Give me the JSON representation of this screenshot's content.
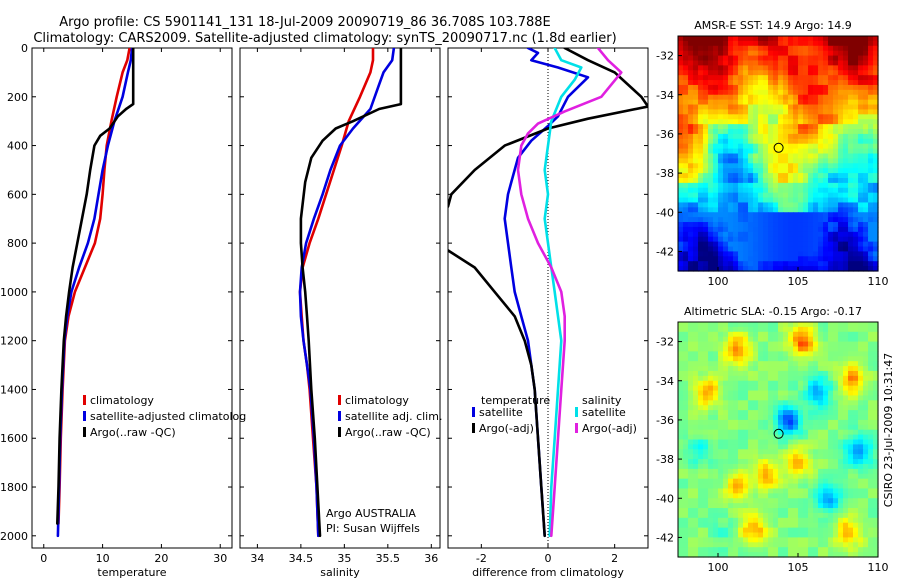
{
  "header": {
    "line1": "Argo profile: CS 5901141_131 18-Jul-2009 20090719_86 36.708S 103.788E",
    "line2": "Climatology: CARS2009. Satellite-adjusted climatology: synTS_20090717.nc (1.8d earlier)"
  },
  "side_text": "CSIRO 23-Jul-2009 10:31:47",
  "colors": {
    "climatology": "#e00000",
    "satellite": "#0000e0",
    "argo": "#000000",
    "sal_satellite": "#00e0e8",
    "sal_argo": "#e020e0"
  },
  "chart_data": [
    {
      "type": "line",
      "id": "temperature",
      "xlabel": "temperature",
      "xlim": [
        -2,
        32
      ],
      "ylim": [
        2050,
        0
      ],
      "xticks": [
        0,
        10,
        20,
        30
      ],
      "yticks": [
        0,
        200,
        400,
        600,
        800,
        1000,
        1200,
        1400,
        1600,
        1800,
        2000
      ],
      "legend": {
        "placement": "lower-left",
        "entries": [
          "climatology",
          "satellite-adjusted climatolog",
          "Argo(..raw -QC)"
        ]
      },
      "series": [
        {
          "name": "climatology",
          "color_key": "climatology",
          "points": [
            [
              14.6,
              0
            ],
            [
              14.2,
              50
            ],
            [
              13.4,
              100
            ],
            [
              12.4,
              200
            ],
            [
              11.5,
              300
            ],
            [
              10.7,
              400
            ],
            [
              10.3,
              500
            ],
            [
              10.0,
              600
            ],
            [
              9.6,
              700
            ],
            [
              8.7,
              800
            ],
            [
              7.0,
              900
            ],
            [
              5.3,
              1000
            ],
            [
              4.2,
              1100
            ],
            [
              3.6,
              1200
            ],
            [
              3.2,
              1400
            ],
            [
              2.9,
              1600
            ],
            [
              2.7,
              1800
            ],
            [
              2.5,
              1950
            ]
          ]
        },
        {
          "name": "satellite-adjusted climatolog",
          "color_key": "satellite",
          "points": [
            [
              15.0,
              0
            ],
            [
              14.8,
              50
            ],
            [
              14.3,
              100
            ],
            [
              13.4,
              200
            ],
            [
              12.0,
              300
            ],
            [
              10.9,
              400
            ],
            [
              10.0,
              500
            ],
            [
              9.3,
              600
            ],
            [
              8.6,
              700
            ],
            [
              7.5,
              800
            ],
            [
              6.0,
              900
            ],
            [
              4.7,
              1000
            ],
            [
              4.0,
              1100
            ],
            [
              3.5,
              1200
            ],
            [
              3.1,
              1400
            ],
            [
              2.8,
              1600
            ],
            [
              2.6,
              1800
            ],
            [
              2.4,
              2000
            ]
          ]
        },
        {
          "name": "Argo(..raw -QC)",
          "color_key": "argo",
          "points": [
            [
              15.2,
              0
            ],
            [
              15.2,
              100
            ],
            [
              15.2,
              230
            ],
            [
              14.0,
              250
            ],
            [
              12.6,
              280
            ],
            [
              11.2,
              330
            ],
            [
              9.6,
              360
            ],
            [
              8.6,
              400
            ],
            [
              7.9,
              500
            ],
            [
              7.3,
              600
            ],
            [
              6.5,
              700
            ],
            [
              5.7,
              800
            ],
            [
              4.9,
              900
            ],
            [
              4.3,
              1000
            ],
            [
              3.8,
              1100
            ],
            [
              3.4,
              1200
            ],
            [
              3.0,
              1400
            ],
            [
              2.7,
              1600
            ],
            [
              2.5,
              1800
            ],
            [
              2.3,
              1950
            ]
          ]
        }
      ]
    },
    {
      "type": "line",
      "id": "salinity",
      "xlabel": "salinity",
      "xlim": [
        33.8,
        36.1
      ],
      "ylim": [
        2050,
        0
      ],
      "xticks": [
        34,
        34.5,
        35,
        35.5,
        36
      ],
      "xticklabels": [
        "34",
        "34.5",
        "35",
        "35.5",
        "36"
      ],
      "legend": {
        "placement": "lower-right",
        "entries": [
          "climatology",
          "satellite adj. clim.",
          "Argo(..raw -QC)"
        ]
      },
      "annotation": [
        "Argo AUSTRALIA",
        "PI: Susan Wijffels"
      ],
      "series": [
        {
          "name": "climatology",
          "color_key": "climatology",
          "points": [
            [
              35.33,
              0
            ],
            [
              35.33,
              50
            ],
            [
              35.3,
              100
            ],
            [
              35.18,
              200
            ],
            [
              35.05,
              300
            ],
            [
              34.97,
              400
            ],
            [
              34.88,
              500
            ],
            [
              34.79,
              600
            ],
            [
              34.7,
              700
            ],
            [
              34.6,
              800
            ],
            [
              34.52,
              900
            ],
            [
              34.49,
              1000
            ],
            [
              34.51,
              1100
            ],
            [
              34.53,
              1200
            ],
            [
              34.57,
              1300
            ],
            [
              34.6,
              1400
            ],
            [
              34.64,
              1600
            ],
            [
              34.68,
              1800
            ],
            [
              34.7,
              2000
            ]
          ]
        },
        {
          "name": "satellite adj. clim.",
          "color_key": "satellite",
          "points": [
            [
              35.57,
              0
            ],
            [
              35.55,
              50
            ],
            [
              35.45,
              100
            ],
            [
              35.4,
              150
            ],
            [
              35.3,
              250
            ],
            [
              35.1,
              330
            ],
            [
              34.95,
              400
            ],
            [
              34.84,
              500
            ],
            [
              34.75,
              600
            ],
            [
              34.65,
              700
            ],
            [
              34.56,
              800
            ],
            [
              34.51,
              900
            ],
            [
              34.49,
              1000
            ],
            [
              34.5,
              1100
            ],
            [
              34.53,
              1200
            ],
            [
              34.57,
              1300
            ],
            [
              34.61,
              1400
            ],
            [
              34.65,
              1600
            ],
            [
              34.68,
              1800
            ],
            [
              34.7,
              2000
            ]
          ]
        },
        {
          "name": "Argo(..raw -QC)",
          "color_key": "argo",
          "points": [
            [
              35.65,
              0
            ],
            [
              35.65,
              100
            ],
            [
              35.65,
              230
            ],
            [
              35.4,
              250
            ],
            [
              35.1,
              300
            ],
            [
              34.9,
              330
            ],
            [
              34.75,
              380
            ],
            [
              34.62,
              450
            ],
            [
              34.55,
              550
            ],
            [
              34.5,
              700
            ],
            [
              34.5,
              800
            ],
            [
              34.52,
              900
            ],
            [
              34.55,
              1000
            ],
            [
              34.57,
              1100
            ],
            [
              34.59,
              1200
            ],
            [
              34.62,
              1400
            ],
            [
              34.66,
              1600
            ],
            [
              34.69,
              1800
            ],
            [
              34.72,
              2000
            ]
          ]
        }
      ]
    },
    {
      "type": "line",
      "id": "difference",
      "xlabel": "difference from climatology",
      "xlim": [
        -3,
        3
      ],
      "ylim": [
        2050,
        0
      ],
      "xticks": [
        -2,
        0,
        2
      ],
      "zero_line": "dotted",
      "legend": {
        "placement": "lower-center",
        "headers": [
          "temperature",
          "salinity"
        ],
        "entries": [
          "satellite",
          "Argo(-adj)",
          "satellite",
          "Argo(-adj)"
        ]
      },
      "series": [
        {
          "name": "temperature satellite",
          "color_key": "satellite",
          "points": [
            [
              -0.6,
              0
            ],
            [
              -0.3,
              20
            ],
            [
              -0.5,
              50
            ],
            [
              0.3,
              80
            ],
            [
              1.2,
              120
            ],
            [
              0.6,
              200
            ],
            [
              0.3,
              280
            ],
            [
              0.0,
              320
            ],
            [
              -0.5,
              380
            ],
            [
              -0.9,
              450
            ],
            [
              -1.1,
              550
            ],
            [
              -1.2,
              600
            ],
            [
              -1.3,
              700
            ],
            [
              -1.2,
              800
            ],
            [
              -1.1,
              900
            ],
            [
              -1.0,
              1000
            ],
            [
              -0.8,
              1100
            ],
            [
              -0.6,
              1200
            ],
            [
              -0.5,
              1300
            ],
            [
              -0.4,
              1400
            ],
            [
              -0.3,
              1600
            ],
            [
              -0.2,
              1800
            ],
            [
              -0.1,
              2000
            ]
          ]
        },
        {
          "name": "temperature Argo(-adj)",
          "color_key": "argo",
          "points": [
            [
              0.5,
              0
            ],
            [
              1.2,
              50
            ],
            [
              2.0,
              100
            ],
            [
              2.8,
              200
            ],
            [
              3.0,
              240
            ],
            [
              1.2,
              290
            ],
            [
              0.0,
              330
            ],
            [
              -1.3,
              400
            ],
            [
              -2.2,
              500
            ],
            [
              -2.9,
              600
            ],
            [
              -3.0,
              650
            ]
          ]
        },
        {
          "name": "temperature Argo(-adj) deep",
          "color_key": "argo",
          "points": [
            [
              -3.0,
              830
            ],
            [
              -2.2,
              900
            ],
            [
              -1.6,
              1000
            ],
            [
              -1.0,
              1100
            ],
            [
              -0.7,
              1200
            ],
            [
              -0.5,
              1300
            ],
            [
              -0.4,
              1400
            ],
            [
              -0.3,
              1600
            ],
            [
              -0.2,
              1800
            ],
            [
              -0.1,
              2000
            ]
          ]
        },
        {
          "name": "salinity satellite",
          "color_key": "sal_satellite",
          "points": [
            [
              0.2,
              0
            ],
            [
              0.4,
              50
            ],
            [
              1.0,
              80
            ],
            [
              0.8,
              130
            ],
            [
              0.4,
              200
            ],
            [
              0.1,
              300
            ],
            [
              0.0,
              400
            ],
            [
              -0.1,
              500
            ],
            [
              0.0,
              600
            ],
            [
              -0.1,
              700
            ],
            [
              0.0,
              800
            ],
            [
              0.1,
              900
            ],
            [
              0.2,
              1000
            ],
            [
              0.3,
              1100
            ],
            [
              0.4,
              1200
            ],
            [
              0.3,
              1400
            ],
            [
              0.2,
              1600
            ],
            [
              0.1,
              1800
            ],
            [
              0.05,
              2000
            ]
          ]
        },
        {
          "name": "salinity Argo(-adj)",
          "color_key": "sal_argo",
          "points": [
            [
              1.5,
              0
            ],
            [
              1.8,
              50
            ],
            [
              2.2,
              100
            ],
            [
              1.6,
              200
            ],
            [
              0.5,
              260
            ],
            [
              -0.3,
              310
            ],
            [
              -0.6,
              350
            ],
            [
              -0.8,
              400
            ],
            [
              -0.9,
              500
            ],
            [
              -0.8,
              600
            ],
            [
              -0.6,
              700
            ],
            [
              -0.3,
              800
            ],
            [
              0.1,
              900
            ],
            [
              0.4,
              1000
            ],
            [
              0.5,
              1100
            ],
            [
              0.5,
              1200
            ],
            [
              0.4,
              1400
            ],
            [
              0.3,
              1600
            ],
            [
              0.2,
              1800
            ],
            [
              0.1,
              2000
            ]
          ]
        }
      ]
    },
    {
      "type": "heatmap",
      "id": "sst-map",
      "title": "AMSR-E SST: 14.9 Argo: 14.9",
      "xlim": [
        97.5,
        110
      ],
      "ylim": [
        -43,
        -31
      ],
      "xticks": [
        100,
        105,
        110
      ],
      "yticks": [
        -32,
        -34,
        -36,
        -38,
        -40,
        -42
      ],
      "marker": [
        103.788,
        -36.708
      ]
    },
    {
      "type": "heatmap",
      "id": "sla-map",
      "title": "Altimetric SLA: -0.15 Argo: -0.17",
      "xlim": [
        97.5,
        110
      ],
      "ylim": [
        -43,
        -31
      ],
      "xticks": [
        100,
        105,
        110
      ],
      "yticks": [
        -32,
        -34,
        -36,
        -38,
        -40,
        -42
      ],
      "marker": [
        103.788,
        -36.708
      ]
    }
  ]
}
